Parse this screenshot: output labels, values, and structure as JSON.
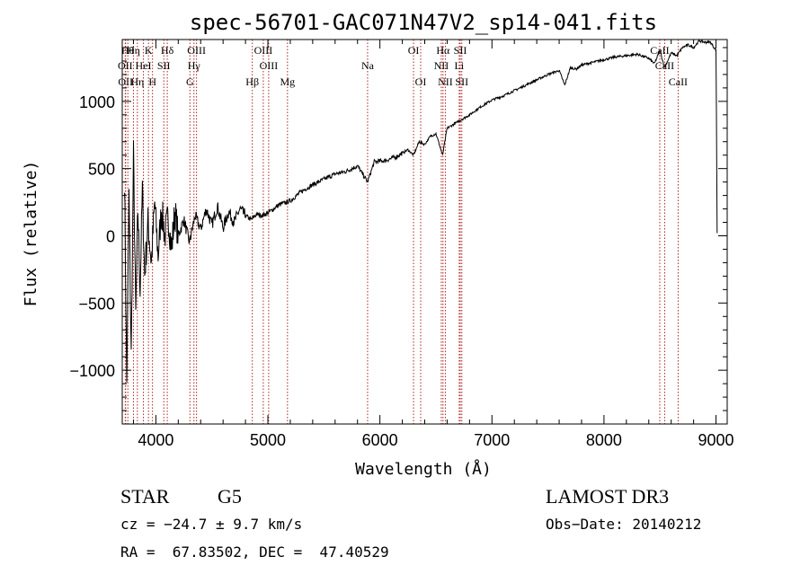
{
  "chart_data": {
    "type": "line",
    "title": "spec-56701-GAC071N47V2_sp14-041.fits",
    "xlabel": "Wavelength (Å)",
    "ylabel": "Flux (relative)",
    "xlim": [
      3700,
      9100
    ],
    "ylim": [
      -1400,
      1460
    ],
    "x_ticks": [
      4000,
      5000,
      6000,
      7000,
      8000,
      9000
    ],
    "x_tick_labels": [
      "4000",
      "5000",
      "6000",
      "7000",
      "8000",
      "9000"
    ],
    "y_ticks": [
      1000,
      500,
      0,
      -500,
      -1000
    ],
    "y_tick_labels": [
      "1000",
      "500",
      "0",
      "−500",
      "−1000"
    ],
    "grid": false,
    "series": [
      {
        "name": "flux",
        "x": [
          3720,
          3740,
          3760,
          3780,
          3800,
          3820,
          3840,
          3860,
          3880,
          3900,
          3930,
          3960,
          3990,
          4020,
          4050,
          4080,
          4110,
          4140,
          4170,
          4200,
          4250,
          4300,
          4350,
          4400,
          4450,
          4500,
          4550,
          4600,
          4650,
          4700,
          4750,
          4800,
          4850,
          4900,
          4950,
          5000,
          5100,
          5200,
          5300,
          5400,
          5500,
          5600,
          5700,
          5800,
          5890,
          5950,
          6050,
          6150,
          6250,
          6300,
          6350,
          6400,
          6450,
          6500,
          6560,
          6600,
          6700,
          6800,
          6900,
          7000,
          7100,
          7200,
          7300,
          7400,
          7500,
          7600,
          7650,
          7700,
          7750,
          7800,
          7900,
          8000,
          8100,
          8200,
          8300,
          8400,
          8450,
          8500,
          8540,
          8600,
          8650,
          8700,
          8750,
          8800,
          8850,
          8900,
          8950,
          9000,
          9010
        ],
        "y": [
          450,
          -1100,
          300,
          -900,
          600,
          -600,
          200,
          -400,
          350,
          -300,
          100,
          -200,
          250,
          -150,
          200,
          0,
          150,
          -100,
          180,
          0,
          120,
          -50,
          150,
          50,
          200,
          80,
          220,
          60,
          180,
          100,
          200,
          150,
          120,
          160,
          150,
          170,
          230,
          260,
          330,
          380,
          420,
          460,
          480,
          520,
          400,
          550,
          560,
          590,
          640,
          600,
          700,
          680,
          740,
          760,
          600,
          800,
          850,
          900,
          960,
          1010,
          1040,
          1080,
          1120,
          1160,
          1200,
          1230,
          1120,
          1250,
          1240,
          1270,
          1290,
          1310,
          1330,
          1340,
          1350,
          1320,
          1280,
          1380,
          1250,
          1360,
          1340,
          1400,
          1420,
          1400,
          1450,
          1440,
          1440,
          1380,
          20
        ]
      }
    ],
    "line_markers": [
      {
        "x": 3750,
        "label": "Hθ",
        "row": 0
      },
      {
        "x": 3800,
        "label": "Hη",
        "row": 0
      },
      {
        "x": 3934,
        "label": "K",
        "row": 0
      },
      {
        "x": 4102,
        "label": "Hδ",
        "row": 0
      },
      {
        "x": 4363,
        "label": "OIII",
        "row": 0
      },
      {
        "x": 4959,
        "label": "OIII",
        "row": 0
      },
      {
        "x": 6300,
        "label": "OI",
        "row": 0
      },
      {
        "x": 6563,
        "label": "Hα",
        "row": 0
      },
      {
        "x": 6717,
        "label": "SII",
        "row": 0
      },
      {
        "x": 8498,
        "label": "CaII",
        "row": 0
      },
      {
        "x": 3727,
        "label": "OII",
        "row": 1
      },
      {
        "x": 3889,
        "label": "HeI",
        "row": 1
      },
      {
        "x": 4071,
        "label": "SII",
        "row": 1
      },
      {
        "x": 4340,
        "label": "Hγ",
        "row": 1
      },
      {
        "x": 5007,
        "label": "OIII",
        "row": 1
      },
      {
        "x": 5890,
        "label": "Na",
        "row": 1
      },
      {
        "x": 6548,
        "label": "NII",
        "row": 1
      },
      {
        "x": 6708,
        "label": "Li",
        "row": 1
      },
      {
        "x": 8542,
        "label": "CaII",
        "row": 1
      },
      {
        "x": 3730,
        "label": "OII",
        "row": 2
      },
      {
        "x": 3835,
        "label": "Hη",
        "row": 2
      },
      {
        "x": 3970,
        "label": "H",
        "row": 2
      },
      {
        "x": 4304,
        "label": "G",
        "row": 2
      },
      {
        "x": 4861,
        "label": "Hβ",
        "row": 2
      },
      {
        "x": 5175,
        "label": "Mg",
        "row": 2
      },
      {
        "x": 6364,
        "label": "OI",
        "row": 2
      },
      {
        "x": 6584,
        "label": "NII",
        "row": 2
      },
      {
        "x": 6731,
        "label": "SII",
        "row": 2
      },
      {
        "x": 8662,
        "label": "CaII",
        "row": 2
      }
    ]
  },
  "info": {
    "object_class": "STAR",
    "subclass": "G5",
    "survey": "LAMOST DR3",
    "cz": "cz = −24.7 ± 9.7 km/s",
    "obs_date": "Obs−Date: 20140212",
    "coords": "RA =  67.83502, DEC =  47.40529"
  }
}
